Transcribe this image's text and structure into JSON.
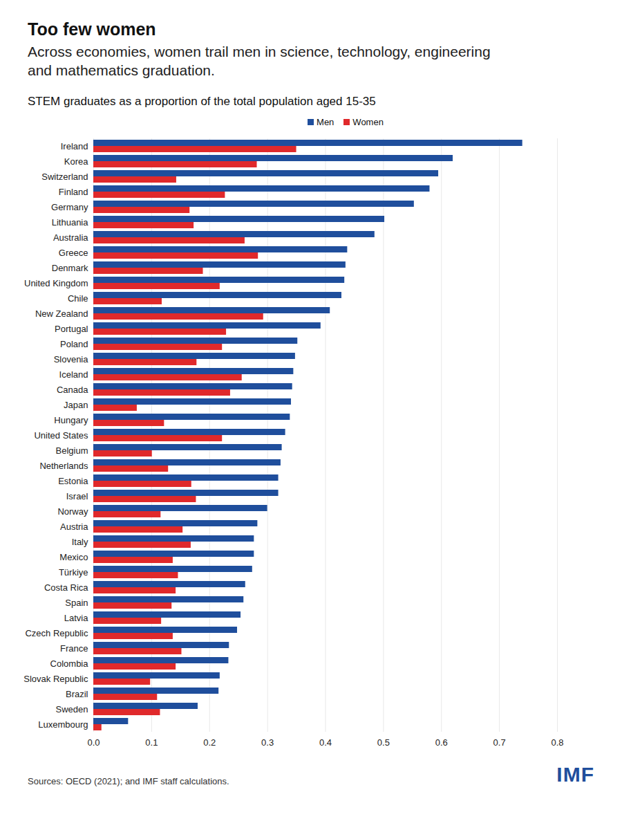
{
  "chart_data": {
    "type": "bar",
    "orientation": "horizontal",
    "title": "Too few women",
    "subtitle": "Across economies, women trail men in science, technology, engineering and mathematics graduation.",
    "chart_title": "STEM graduates as a proportion of the total population aged 15-35",
    "source": "Sources: OECD (2021); and IMF staff calculations.",
    "logo": "IMF",
    "categories": [
      "Ireland",
      "Korea",
      "Switzerland",
      "Finland",
      "Germany",
      "Lithuania",
      "Australia",
      "Greece",
      "Denmark",
      "United Kingdom",
      "Chile",
      "New Zealand",
      "Portugal",
      "Poland",
      "Slovenia",
      "Iceland",
      "Canada",
      "Japan",
      "Hungary",
      "United States",
      "Belgium",
      "Netherlands",
      "Estonia",
      "Israel",
      "Norway",
      "Austria",
      "Italy",
      "Mexico",
      "Türkiye",
      "Costa Rica",
      "Spain",
      "Latvia",
      "Czech Republic",
      "France",
      "Colombia",
      "Slovak Republic",
      "Brazil",
      "Sweden",
      "Luxembourg"
    ],
    "series": [
      {
        "name": "Men",
        "color": "#1f4e9c",
        "values": [
          0.74,
          0.62,
          0.595,
          0.58,
          0.553,
          0.502,
          0.485,
          0.438,
          0.435,
          0.433,
          0.428,
          0.408,
          0.392,
          0.352,
          0.348,
          0.345,
          0.343,
          0.341,
          0.339,
          0.331,
          0.325,
          0.323,
          0.319,
          0.319,
          0.3,
          0.283,
          0.277,
          0.277,
          0.274,
          0.262,
          0.259,
          0.254,
          0.248,
          0.234,
          0.233,
          0.218,
          0.216,
          0.18,
          0.06
        ]
      },
      {
        "name": "Women",
        "color": "#e0292b",
        "values": [
          0.35,
          0.282,
          0.143,
          0.227,
          0.166,
          0.173,
          0.261,
          0.284,
          0.189,
          0.218,
          0.118,
          0.293,
          0.229,
          0.222,
          0.178,
          0.256,
          0.236,
          0.075,
          0.122,
          0.222,
          0.101,
          0.129,
          0.169,
          0.177,
          0.116,
          0.154,
          0.168,
          0.137,
          0.146,
          0.142,
          0.135,
          0.117,
          0.137,
          0.152,
          0.142,
          0.098,
          0.11,
          0.115,
          0.014
        ]
      }
    ],
    "xlim": [
      0,
      0.8
    ],
    "xticks": [
      {
        "value": 0,
        "label": "0.0"
      },
      0.1,
      0.2,
      0.3,
      0.4,
      0.5,
      0.6,
      0.7,
      0.8
    ],
    "grid": true,
    "legend": "top"
  }
}
